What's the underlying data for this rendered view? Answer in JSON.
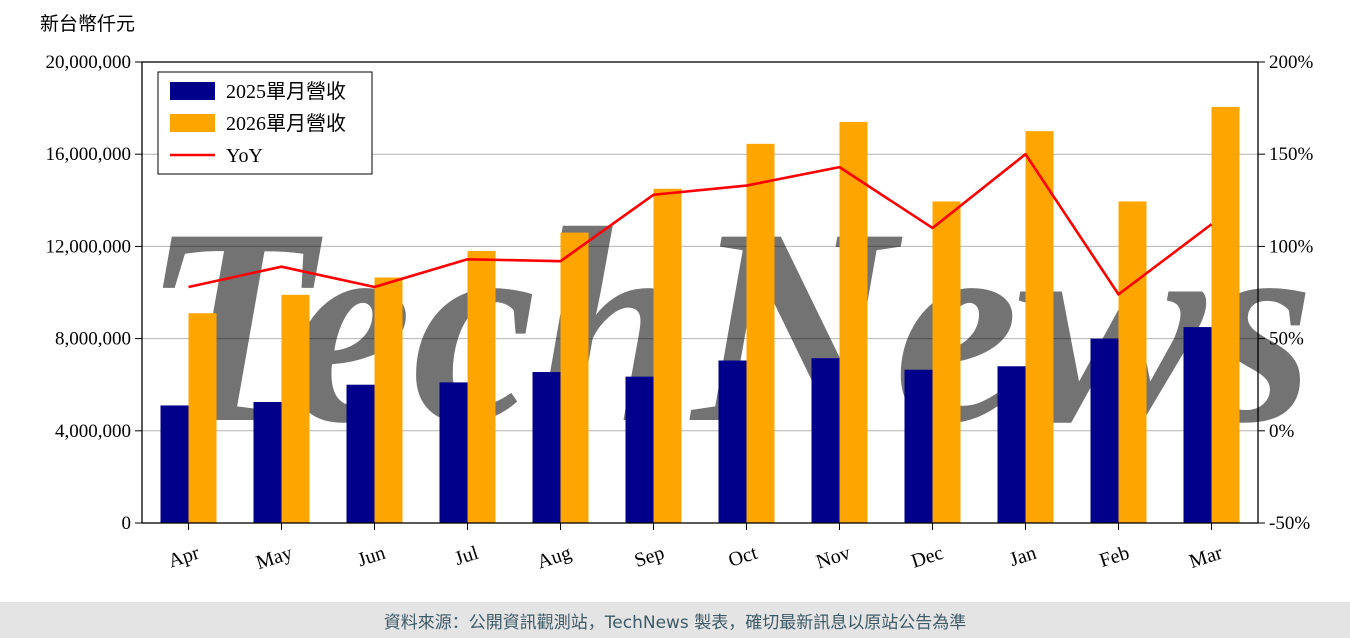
{
  "chart_data": {
    "type": "bar",
    "categories": [
      "Apr",
      "May",
      "Jun",
      "Jul",
      "Aug",
      "Sep",
      "Oct",
      "Nov",
      "Dec",
      "Jan",
      "Feb",
      "Mar"
    ],
    "series": [
      {
        "name": "2025單月營收",
        "type": "bar",
        "axis": "left",
        "color": "#00008B",
        "values": [
          5100000,
          5250000,
          6000000,
          6100000,
          6550000,
          6350000,
          7050000,
          7150000,
          6650000,
          6800000,
          8000000,
          8500000
        ]
      },
      {
        "name": "2026單月營收",
        "type": "bar",
        "axis": "left",
        "color": "#FFA500",
        "values": [
          9100000,
          9900000,
          10650000,
          11800000,
          12600000,
          14500000,
          16450000,
          17400000,
          13950000,
          17000000,
          13950000,
          18050000
        ]
      },
      {
        "name": "YoY",
        "type": "line",
        "axis": "right",
        "color": "#FF0000",
        "unit": "%",
        "values": [
          78,
          89,
          78,
          93,
          92,
          128,
          133,
          143,
          110,
          150,
          74,
          112
        ]
      }
    ],
    "left_axis": {
      "title": "新台幣仟元",
      "min": 0,
      "max": 20000000,
      "ticks": [
        0,
        4000000,
        8000000,
        12000000,
        16000000,
        20000000
      ],
      "tick_labels": [
        "0",
        "4,000,000",
        "8,000,000",
        "12,000,000",
        "16,000,000",
        "20,000,000"
      ]
    },
    "right_axis": {
      "min": -50,
      "max": 200,
      "ticks": [
        -50,
        0,
        50,
        100,
        150,
        200
      ],
      "tick_labels": [
        "-50%",
        "0%",
        "50%",
        "100%",
        "150%",
        "200%"
      ]
    },
    "grid": true,
    "legend_position": "top-left"
  },
  "watermark": {
    "part1": "Tech",
    "part2": "News",
    "color1": "#d6d6d6",
    "color2": "#efb0b0"
  },
  "footer": {
    "text": "資料來源：公開資訊觀測站，TechNews 製表，確切最新訊息以原站公告為準"
  }
}
